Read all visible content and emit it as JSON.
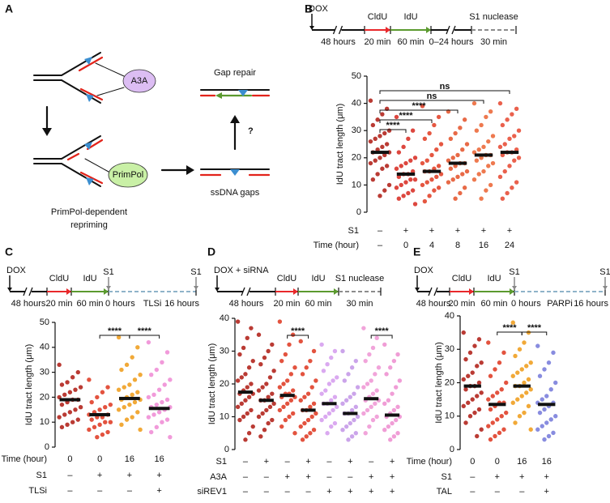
{
  "diagram": {
    "panel": "A",
    "a3a": "A3A",
    "primpol": "PrimPol",
    "repriming": [
      "PrimPol-dependent",
      "repriming"
    ],
    "ssdna_gaps": "ssDNA gaps",
    "gap_repair": "Gap repair",
    "question": "?"
  },
  "chart_data": [
    {
      "type": "strip",
      "panel": "B",
      "ylabel": "IdU tract length (μm)",
      "ylim": [
        0,
        50
      ],
      "yticks": [
        0,
        10,
        20,
        30,
        40,
        50
      ],
      "timeline": [
        {
          "top": "DOX",
          "bottom": "48 hours",
          "color": "#111111"
        },
        {
          "top": "CldU",
          "bottom": "20 min",
          "color": "#e8282b"
        },
        {
          "top": "IdU",
          "bottom": "60 min",
          "color": "#5b9a2f"
        },
        {
          "bottom": "0–24 hours",
          "color": "#111111"
        },
        {
          "top": "S1 nuclease",
          "bottom": "30 min",
          "color": "#8c8c8c",
          "dashed": true
        }
      ],
      "colors": [
        "#b3261e",
        "#d9332a",
        "#e2452c",
        "#e65a33",
        "#ec6a3c",
        "#e8503a"
      ],
      "medians": [
        22,
        14,
        15,
        18,
        21,
        22
      ],
      "points": [
        [
          41,
          38,
          36,
          34,
          32,
          30,
          29,
          28,
          27,
          26,
          25,
          24,
          23,
          22,
          22,
          21,
          20,
          19,
          18,
          17,
          16,
          14,
          12,
          10,
          8,
          6
        ],
        [
          35,
          30,
          27,
          24,
          22,
          20,
          19,
          18,
          17,
          16,
          15,
          14,
          14,
          13,
          12,
          12,
          11,
          10,
          9,
          8,
          7,
          6,
          5,
          3
        ],
        [
          39,
          35,
          32,
          29,
          27,
          25,
          23,
          21,
          19,
          18,
          17,
          16,
          15,
          15,
          14,
          13,
          12,
          11,
          10,
          9,
          8,
          6,
          4
        ],
        [
          37,
          34,
          31,
          29,
          27,
          25,
          23,
          21,
          20,
          19,
          18,
          18,
          17,
          16,
          15,
          14,
          13,
          12,
          11,
          9,
          7,
          5
        ],
        [
          40,
          37,
          35,
          32,
          30,
          28,
          26,
          24,
          23,
          22,
          21,
          21,
          20,
          19,
          18,
          17,
          15,
          14,
          12,
          10,
          8,
          5
        ],
        [
          40,
          38,
          36,
          34,
          32,
          30,
          28,
          27,
          25,
          24,
          23,
          22,
          22,
          21,
          20,
          19,
          17,
          15,
          13,
          11,
          9,
          7,
          5
        ]
      ],
      "comparisons": [
        {
          "columns": [
            0,
            1
          ],
          "label": "****"
        },
        {
          "columns": [
            0,
            2
          ],
          "label": "****"
        },
        {
          "columns": [
            0,
            3
          ],
          "label": "****"
        },
        {
          "columns": [
            0,
            4
          ],
          "label": "ns"
        },
        {
          "columns": [
            0,
            5
          ],
          "label": "ns"
        }
      ],
      "rows": [
        {
          "name": "S1",
          "labels": [
            "–",
            "+",
            "+",
            "+",
            "+",
            "+"
          ]
        },
        {
          "name": "Time (hour)",
          "labels": [
            "–",
            "0",
            "4",
            "8",
            "16",
            "24"
          ]
        }
      ]
    },
    {
      "type": "strip",
      "panel": "C",
      "ylabel": "IdU tract length (μm)",
      "ylim": [
        0,
        50
      ],
      "yticks": [
        0,
        10,
        20,
        30,
        40,
        50
      ],
      "timeline": [
        {
          "top": "DOX",
          "bottom": "48 hours",
          "color": "#111111"
        },
        {
          "top": "CldU",
          "bottom": "20 min",
          "color": "#e8282b"
        },
        {
          "top": "IdU",
          "bottom": "60 min",
          "color": "#5b9a2f"
        },
        {
          "top": "S1",
          "bottom": "0 hours",
          "mid": "TLSi",
          "color": "#8fb3c9",
          "dashed": true
        }
      ],
      "timeline_end": {
        "top": "S1",
        "bottom": "16 hours"
      },
      "colors": [
        "#b3261e",
        "#e0402a",
        "#f0a022",
        "#f08fd6"
      ],
      "medians": [
        19,
        13,
        19.5,
        15.5
      ],
      "points": [
        [
          33,
          30,
          28,
          26,
          25,
          24,
          23,
          22,
          21,
          20,
          19,
          19,
          18,
          17,
          16,
          15,
          14,
          13,
          12,
          11,
          10,
          9,
          8
        ],
        [
          27,
          24,
          22,
          20,
          18,
          17,
          16,
          15,
          14,
          13,
          13,
          12,
          12,
          11,
          10,
          10,
          9,
          8,
          7,
          6,
          5,
          4
        ],
        [
          44,
          40,
          36,
          33,
          31,
          29,
          27,
          25,
          24,
          23,
          22,
          21,
          20,
          19,
          19,
          18,
          17,
          16,
          15,
          14,
          12,
          11,
          9,
          7
        ],
        [
          42,
          38,
          34,
          31,
          29,
          27,
          25,
          23,
          21,
          20,
          19,
          18,
          17,
          16,
          16,
          15,
          14,
          13,
          12,
          11,
          10,
          8,
          6,
          4
        ]
      ],
      "comparisons": [
        {
          "columns": [
            1,
            2
          ],
          "label": "****"
        },
        {
          "columns": [
            2,
            3
          ],
          "label": "****"
        }
      ],
      "rows": [
        {
          "name": "Time (hour)",
          "labels": [
            "0",
            "0",
            "16",
            "16"
          ]
        },
        {
          "name": "S1",
          "labels": [
            "–",
            "+",
            "+",
            "+"
          ]
        },
        {
          "name": "TLSi",
          "labels": [
            "–",
            "–",
            "–",
            "+"
          ]
        }
      ]
    },
    {
      "type": "strip",
      "panel": "D",
      "ylabel": "IdU tract length (μm)",
      "ylim": [
        0,
        40
      ],
      "yticks": [
        0,
        10,
        20,
        30,
        40
      ],
      "timeline": [
        {
          "top": "DOX + siRNA",
          "bottom": "48 hours",
          "color": "#111111"
        },
        {
          "top": "CldU",
          "bottom": "20 min",
          "color": "#e8282b"
        },
        {
          "top": "IdU",
          "bottom": "60 min",
          "color": "#5b9a2f"
        },
        {
          "top": "S1 nuclease",
          "bottom": "30 min",
          "color": "#8c8c8c",
          "dashed": true
        }
      ],
      "colors": [
        "#b3261e",
        "#b3261e",
        "#e0402a",
        "#e0402a",
        "#d6a0ee",
        "#c59ae8",
        "#f09ad6",
        "#ee92d2"
      ],
      "medians": [
        17.5,
        15,
        16.5,
        12,
        14,
        11,
        15.5,
        10.5
      ],
      "points": [
        [
          39,
          37,
          34,
          31,
          29,
          27,
          25,
          23,
          22,
          21,
          20,
          19,
          18,
          17,
          17,
          16,
          15,
          14,
          13,
          12,
          11,
          10,
          9,
          7,
          5,
          3
        ],
        [
          35,
          32,
          30,
          28,
          26,
          24,
          22,
          20,
          19,
          18,
          17,
          16,
          15,
          15,
          14,
          13,
          12,
          11,
          10,
          9,
          8,
          6,
          4
        ],
        [
          39,
          35,
          32,
          29,
          27,
          25,
          23,
          21,
          20,
          19,
          18,
          17,
          17,
          16,
          16,
          15,
          14,
          13,
          12,
          11,
          10,
          9,
          7,
          5
        ],
        [
          33,
          30,
          27,
          25,
          23,
          21,
          19,
          17,
          16,
          15,
          14,
          13,
          12,
          12,
          11,
          10,
          9,
          8,
          7,
          6,
          5,
          4,
          3
        ],
        [
          32,
          30,
          28,
          26,
          24,
          22,
          21,
          20,
          18,
          17,
          16,
          15,
          14,
          14,
          13,
          12,
          11,
          10,
          9,
          8,
          7,
          5
        ],
        [
          30,
          27,
          25,
          23,
          21,
          19,
          17,
          16,
          15,
          14,
          13,
          12,
          11,
          11,
          10,
          9,
          8,
          7,
          6,
          5,
          4,
          3
        ],
        [
          37,
          34,
          31,
          29,
          27,
          25,
          23,
          21,
          20,
          19,
          18,
          17,
          16,
          15,
          15,
          14,
          13,
          12,
          11,
          10,
          9,
          7,
          5
        ],
        [
          32,
          29,
          27,
          25,
          23,
          21,
          19,
          17,
          15,
          14,
          13,
          12,
          11,
          10,
          10,
          9,
          8,
          7,
          6,
          5,
          4,
          3
        ]
      ],
      "comparisons": [
        {
          "columns": [
            2,
            3
          ],
          "label": "****"
        },
        {
          "columns": [
            6,
            7
          ],
          "label": "****"
        }
      ],
      "rows": [
        {
          "name": "S1",
          "labels": [
            "–",
            "+",
            "–",
            "+",
            "–",
            "+",
            "–",
            "+"
          ]
        },
        {
          "name": "A3A",
          "labels": [
            "–",
            "–",
            "+",
            "+",
            "–",
            "–",
            "+",
            "+"
          ]
        },
        {
          "name": "siREV1",
          "labels": [
            "–",
            "–",
            "–",
            "–",
            "+",
            "+",
            "+",
            "+"
          ]
        }
      ]
    },
    {
      "type": "strip",
      "panel": "E",
      "ylabel": "IdU tract length (μm)",
      "ylim": [
        0,
        40
      ],
      "yticks": [
        0,
        10,
        20,
        30,
        40
      ],
      "timeline": [
        {
          "top": "DOX",
          "bottom": "48 hours",
          "color": "#111111"
        },
        {
          "top": "CldU",
          "bottom": "20 min",
          "color": "#e8282b"
        },
        {
          "top": "IdU",
          "bottom": "60 min",
          "color": "#5b9a2f"
        },
        {
          "top": "S1",
          "bottom": "0 hours",
          "mid": "PARPi",
          "color": "#8fb3c9",
          "dashed": true
        }
      ],
      "timeline_end": {
        "top": "S1",
        "bottom": "16 hours"
      },
      "colors": [
        "#b3261e",
        "#e0402a",
        "#f0a022",
        "#7b80dc"
      ],
      "medians": [
        19,
        13.5,
        19,
        13.5
      ],
      "points": [
        [
          35,
          33,
          31,
          29,
          27,
          26,
          25,
          23,
          22,
          21,
          20,
          19,
          19,
          18,
          17,
          16,
          15,
          14,
          13,
          12,
          11,
          10,
          8,
          6,
          4
        ],
        [
          32,
          29,
          26,
          24,
          22,
          20,
          18,
          17,
          16,
          15,
          14,
          14,
          13,
          12,
          11,
          10,
          9,
          8,
          7,
          6,
          5,
          4,
          3
        ],
        [
          38,
          35,
          32,
          30,
          28,
          26,
          25,
          24,
          23,
          22,
          21,
          20,
          19,
          19,
          18,
          17,
          16,
          15,
          14,
          13,
          11,
          10,
          8,
          6
        ],
        [
          31,
          29,
          26,
          24,
          22,
          20,
          18,
          16,
          15,
          14,
          14,
          13,
          12,
          11,
          10,
          9,
          8,
          7,
          6,
          5,
          4,
          3
        ]
      ],
      "comparisons": [
        {
          "columns": [
            1,
            2
          ],
          "label": "****"
        },
        {
          "columns": [
            2,
            3
          ],
          "label": "****"
        }
      ],
      "rows": [
        {
          "name": "Time (hour)",
          "labels": [
            "0",
            "0",
            "16",
            "16"
          ]
        },
        {
          "name": "S1",
          "labels": [
            "–",
            "+",
            "+",
            "+"
          ]
        },
        {
          "name": "TAL",
          "labels": [
            "–",
            "–",
            "–",
            "+"
          ]
        }
      ]
    }
  ]
}
